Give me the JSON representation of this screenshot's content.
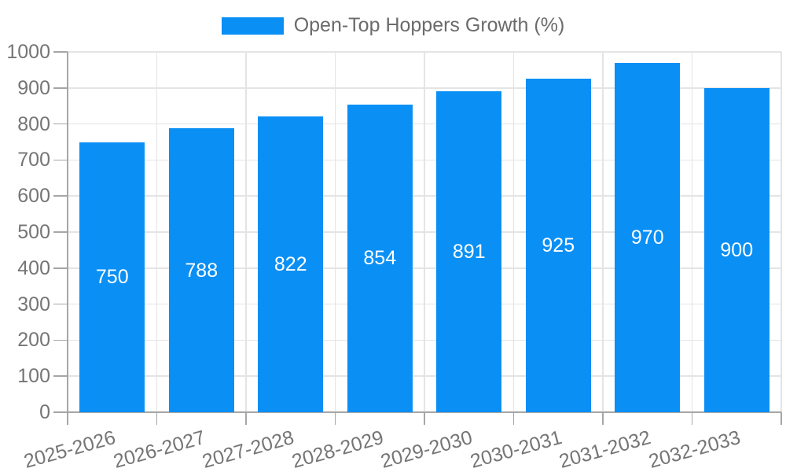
{
  "chart_data": {
    "type": "bar",
    "title": "",
    "legend": {
      "label": "Open-Top Hoppers Growth (%)",
      "position": "top"
    },
    "categories": [
      "2025-2026",
      "2026-2027",
      "2027-2028",
      "2028-2029",
      "2029-2030",
      "2030-2031",
      "2031-2032",
      "2032-2033"
    ],
    "values": [
      750,
      788,
      822,
      854,
      891,
      925,
      970,
      900
    ],
    "xlabel": "",
    "ylabel": "",
    "ylim": [
      0,
      1000
    ],
    "ytick_step": 100,
    "grid": true,
    "legend_position": "top",
    "colors": {
      "bar": "#0a8ff5",
      "value_label": "#ffffff",
      "axis_text": "#757575",
      "legend_text": "#6b6b6b",
      "grid_line": "#e4e4e4",
      "axis_line": "#a6a6a6",
      "background": "#ffffff"
    }
  }
}
